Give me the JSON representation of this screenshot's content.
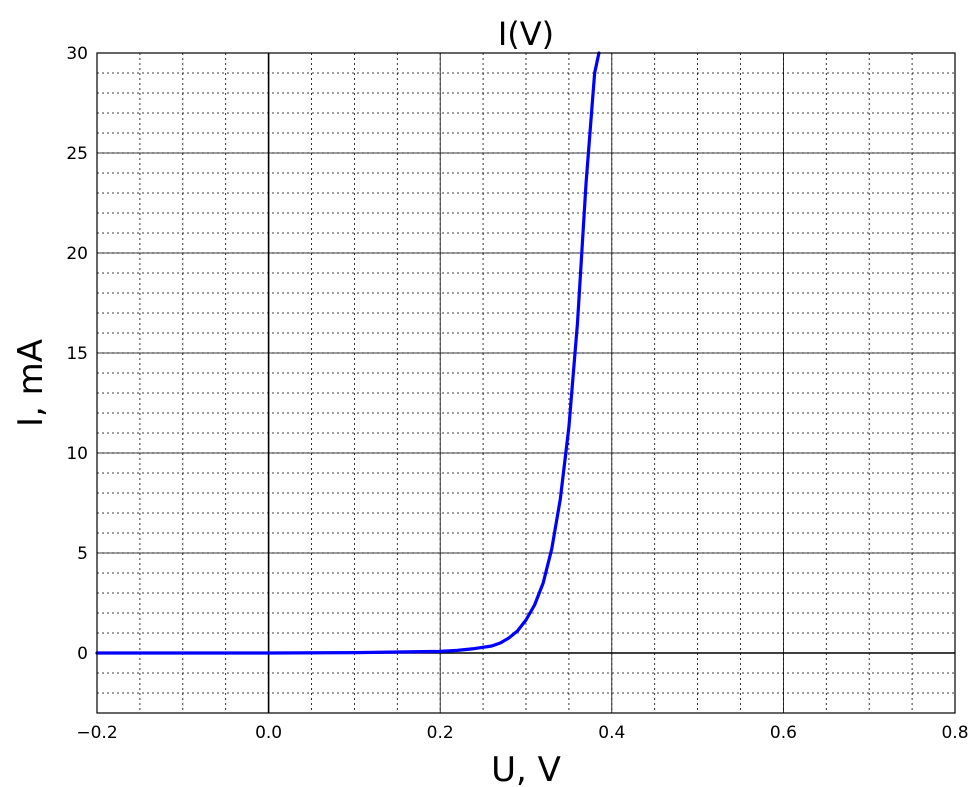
{
  "chart_data": {
    "type": "line",
    "title": "I(V)",
    "xlabel": "U, V",
    "ylabel": "I, mA",
    "xlim": [
      -0.2,
      0.8
    ],
    "ylim": [
      -3,
      30
    ],
    "grid": true,
    "x_ticks": [
      -0.2,
      0.0,
      0.2,
      0.4,
      0.6,
      0.8
    ],
    "x_tick_labels": [
      "−0.2",
      "0.0",
      "0.2",
      "0.4",
      "0.6",
      "0.8"
    ],
    "y_ticks": [
      0,
      5,
      10,
      15,
      20,
      25,
      30
    ],
    "y_tick_labels": [
      "0",
      "5",
      "10",
      "15",
      "20",
      "25",
      "30"
    ],
    "series": [
      {
        "color": "#0000ff",
        "x": [
          -0.2,
          -0.1,
          0.0,
          0.1,
          0.2,
          0.22,
          0.24,
          0.26,
          0.27,
          0.28,
          0.29,
          0.3,
          0.31,
          0.32,
          0.33,
          0.34,
          0.35,
          0.36,
          0.37,
          0.38,
          0.385
        ],
        "y": [
          0,
          0,
          0,
          0.02,
          0.08,
          0.13,
          0.22,
          0.35,
          0.5,
          0.75,
          1.1,
          1.65,
          2.4,
          3.5,
          5.2,
          7.7,
          11.3,
          16.5,
          23.5,
          29.0,
          30.0
        ]
      }
    ]
  }
}
